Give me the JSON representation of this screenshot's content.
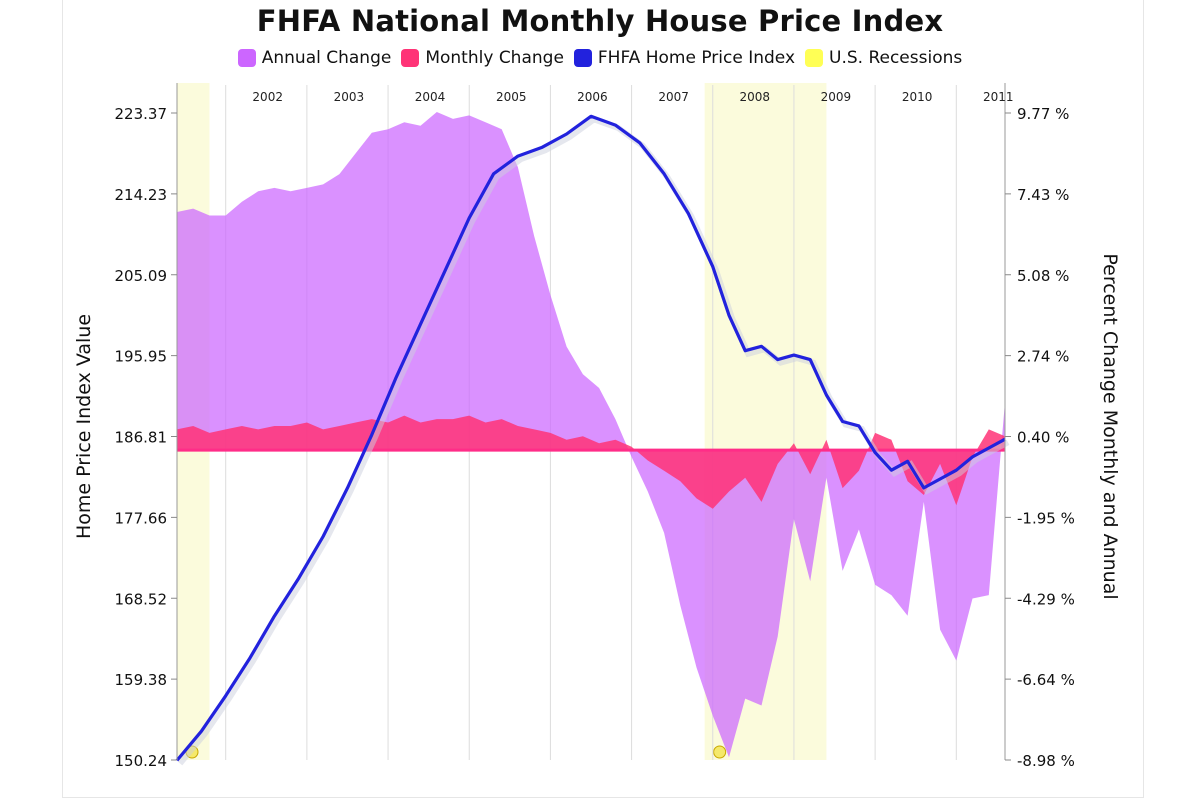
{
  "chart_data": {
    "type": "area",
    "title": "FHFA National Monthly House Price Index",
    "ylabel_left": "Home Price Index Value",
    "ylabel_right": "Percent Change Monthly and Annual",
    "xlabel": "",
    "ylim_left": [
      150.24,
      223.37
    ],
    "ylim_right": [
      -8.98,
      9.77
    ],
    "yticks_left": [
      "150.24",
      "159.38",
      "168.52",
      "177.66",
      "186.81",
      "195.95",
      "205.09",
      "214.23",
      "223.37"
    ],
    "yticks_right": [
      "-8.98 %",
      "-6.64 %",
      "-4.29 %",
      "-1.95 %",
      "0.40 %",
      "2.74 %",
      "5.08 %",
      "7.43 %",
      "9.77 %"
    ],
    "year_labels": [
      "2002",
      "2003",
      "2004",
      "2005",
      "2006",
      "2007",
      "2008",
      "2009",
      "2010",
      "2011"
    ],
    "x_range": [
      2001.4,
      2011.6
    ],
    "legend_position": "top",
    "grid": "vertical year lines",
    "series": [
      {
        "name": "Annual Change",
        "axis": "right",
        "color": "#cc66ff",
        "x": [
          2001.4,
          2001.6,
          2001.8,
          2002.0,
          2002.2,
          2002.4,
          2002.6,
          2002.8,
          2003.0,
          2003.2,
          2003.4,
          2003.6,
          2003.8,
          2004.0,
          2004.2,
          2004.4,
          2004.6,
          2004.8,
          2005.0,
          2005.2,
          2005.4,
          2005.6,
          2005.8,
          2006.0,
          2006.2,
          2006.4,
          2006.6,
          2006.8,
          2007.0,
          2007.2,
          2007.4,
          2007.6,
          2007.8,
          2008.0,
          2008.2,
          2008.4,
          2008.6,
          2008.8,
          2009.0,
          2009.2,
          2009.4,
          2009.6,
          2009.8,
          2010.0,
          2010.2,
          2010.4,
          2010.6,
          2010.8,
          2011.0,
          2011.2,
          2011.4,
          2011.6
        ],
        "values": [
          6.9,
          7.0,
          6.8,
          6.8,
          7.2,
          7.5,
          7.6,
          7.5,
          7.6,
          7.7,
          8.0,
          8.6,
          9.2,
          9.3,
          9.5,
          9.4,
          9.8,
          9.6,
          9.7,
          9.5,
          9.3,
          8.2,
          6.2,
          4.5,
          3.0,
          2.2,
          1.8,
          0.9,
          -0.2,
          -1.2,
          -2.4,
          -4.5,
          -6.3,
          -7.7,
          -8.9,
          -7.2,
          -7.4,
          -5.4,
          -2.0,
          -3.8,
          -0.8,
          -3.5,
          -2.3,
          -3.9,
          -4.2,
          -4.8,
          -1.5,
          -5.2,
          -6.1,
          -4.3,
          -4.2,
          1.4
        ]
      },
      {
        "name": "Monthly Change",
        "axis": "right",
        "color": "#ff3377",
        "x": [
          2001.4,
          2001.6,
          2001.8,
          2002.0,
          2002.2,
          2002.4,
          2002.6,
          2002.8,
          2003.0,
          2003.2,
          2003.4,
          2003.6,
          2003.8,
          2004.0,
          2004.2,
          2004.4,
          2004.6,
          2004.8,
          2005.0,
          2005.2,
          2005.4,
          2005.6,
          2005.8,
          2006.0,
          2006.2,
          2006.4,
          2006.6,
          2006.8,
          2007.0,
          2007.2,
          2007.4,
          2007.6,
          2007.8,
          2008.0,
          2008.2,
          2008.4,
          2008.6,
          2008.8,
          2009.0,
          2009.2,
          2009.4,
          2009.6,
          2009.8,
          2010.0,
          2010.2,
          2010.4,
          2010.6,
          2010.8,
          2011.0,
          2011.2,
          2011.4,
          2011.6
        ],
        "values": [
          0.6,
          0.7,
          0.5,
          0.6,
          0.7,
          0.6,
          0.7,
          0.7,
          0.8,
          0.6,
          0.7,
          0.8,
          0.9,
          0.8,
          1.0,
          0.8,
          0.9,
          0.9,
          1.0,
          0.8,
          0.9,
          0.7,
          0.6,
          0.5,
          0.3,
          0.4,
          0.2,
          0.3,
          0.1,
          -0.3,
          -0.6,
          -0.9,
          -1.4,
          -1.7,
          -1.2,
          -0.8,
          -1.5,
          -0.4,
          0.2,
          -0.7,
          0.3,
          -1.1,
          -0.6,
          0.5,
          0.3,
          -0.9,
          -1.3,
          -0.4,
          -1.6,
          -0.2,
          0.6,
          0.4
        ]
      },
      {
        "name": "FHFA Home Price Index",
        "axis": "left",
        "color": "#2222dd",
        "x": [
          2001.4,
          2001.7,
          2002.0,
          2002.3,
          2002.6,
          2002.9,
          2003.2,
          2003.5,
          2003.8,
          2004.1,
          2004.4,
          2004.7,
          2005.0,
          2005.3,
          2005.6,
          2005.9,
          2006.2,
          2006.5,
          2006.8,
          2007.1,
          2007.4,
          2007.7,
          2008.0,
          2008.2,
          2008.4,
          2008.6,
          2008.8,
          2009.0,
          2009.2,
          2009.4,
          2009.6,
          2009.8,
          2010.0,
          2010.2,
          2010.4,
          2010.6,
          2010.8,
          2011.0,
          2011.2,
          2011.4,
          2011.6
        ],
        "values": [
          150.2,
          153.5,
          157.5,
          161.8,
          166.5,
          170.8,
          175.5,
          181.0,
          187.0,
          193.5,
          199.5,
          205.5,
          211.5,
          216.5,
          218.5,
          219.5,
          221.0,
          223.0,
          222.0,
          220.0,
          216.5,
          212.0,
          206.0,
          200.5,
          196.5,
          197.0,
          195.5,
          196.0,
          195.5,
          191.5,
          188.5,
          188.0,
          185.0,
          183.0,
          184.0,
          181.0,
          182.0,
          183.0,
          184.5,
          185.5,
          186.5
        ]
      },
      {
        "name": "U.S. Recessions",
        "axis": "x",
        "color": "#ffff66",
        "periods": [
          [
            2001.4,
            2001.8
          ],
          [
            2007.9,
            2009.4
          ]
        ]
      }
    ]
  }
}
